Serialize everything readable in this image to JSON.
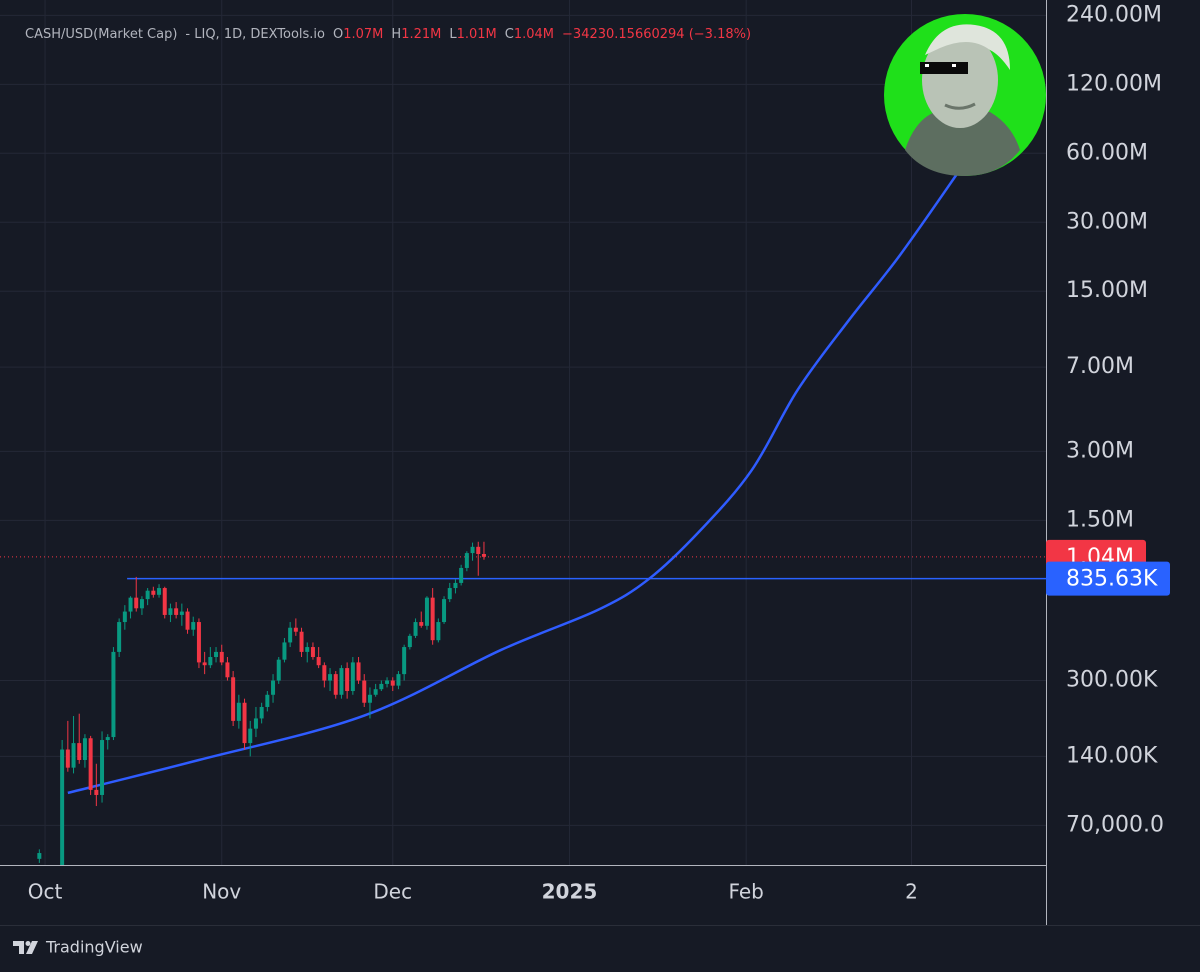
{
  "chart_data": {
    "type": "candlestick",
    "title": "CASH/USD(Market Cap)",
    "subtitle": "- LIQ, 1D, DEXTools.io",
    "ohlc_legend": [
      {
        "label": "O",
        "value": "1.07M"
      },
      {
        "label": "H",
        "value": "1.21M"
      },
      {
        "label": "L",
        "value": "1.01M"
      },
      {
        "label": "C",
        "value": "1.04M"
      }
    ],
    "change": "−34230.15660294 (−3.18%)",
    "up_color": "#089981",
    "down_color": "#f23645",
    "log_scale": true,
    "grid": true,
    "xlim": [
      -7.9,
      175.6
    ],
    "xticks": [
      {
        "value": 0,
        "label": "Oct"
      },
      {
        "value": 31,
        "label": "Nov"
      },
      {
        "value": 61,
        "label": "Dec"
      },
      {
        "value": 92,
        "label": "2025"
      },
      {
        "value": 123,
        "label": "Feb"
      },
      {
        "value": 152,
        "label": "2"
      }
    ],
    "ylim": [
      47000,
      280000000
    ],
    "yticks": [
      {
        "value": 240000000,
        "label": "240.00M"
      },
      {
        "value": 120000000,
        "label": "120.00M"
      },
      {
        "value": 60000000,
        "label": "60.00M"
      },
      {
        "value": 30000000,
        "label": "30.00M"
      },
      {
        "value": 15000000,
        "label": "15.00M"
      },
      {
        "value": 7000000,
        "label": "7.00M"
      },
      {
        "value": 3000000,
        "label": "3.00M"
      },
      {
        "value": 1500000,
        "label": "1.50M"
      },
      {
        "value": 300000,
        "label": "300.00K"
      },
      {
        "value": 140000,
        "label": "140.00K"
      },
      {
        "value": 70000,
        "label": "70,000.0"
      }
    ],
    "x": [
      -1,
      3,
      4,
      5,
      6,
      7,
      8,
      9,
      10,
      11,
      12,
      13,
      14,
      15,
      16,
      17,
      18,
      19,
      20,
      21,
      22,
      23,
      24,
      25,
      26,
      27,
      28,
      29,
      30,
      31,
      32,
      33,
      34,
      35,
      36,
      37,
      38,
      39,
      40,
      41,
      42,
      43,
      44,
      45,
      46,
      47,
      48,
      49,
      50,
      51,
      52,
      53,
      54,
      55,
      56,
      57,
      58,
      59,
      60,
      61,
      62,
      63,
      64,
      65,
      66,
      67,
      68,
      69,
      70,
      71,
      72,
      73,
      74,
      75,
      76,
      77
    ],
    "open": [
      50000,
      47000,
      150000,
      125000,
      160000,
      135000,
      168000,
      100000,
      95000,
      165000,
      170000,
      400000,
      540000,
      600000,
      690000,
      620000,
      680000,
      740000,
      710000,
      760000,
      580000,
      620000,
      580000,
      600000,
      500000,
      540000,
      360000,
      350000,
      380000,
      400000,
      360000,
      310000,
      200000,
      240000,
      160000,
      185000,
      205000,
      230000,
      260000,
      300000,
      370000,
      440000,
      510000,
      490000,
      400000,
      420000,
      380000,
      350000,
      300000,
      320000,
      260000,
      340000,
      270000,
      360000,
      300000,
      240000,
      260000,
      275000,
      290000,
      300000,
      285000,
      320000,
      420000,
      470000,
      540000,
      520000,
      690000,
      450000,
      540000,
      680000,
      760000,
      800000,
      930000,
      1080000,
      1150000,
      1070000
    ],
    "high": [
      55000,
      165000,
      200000,
      210000,
      215000,
      175000,
      172000,
      130000,
      180000,
      175000,
      420000,
      560000,
      640000,
      700000,
      850000,
      700000,
      760000,
      770000,
      790000,
      770000,
      650000,
      660000,
      650000,
      620000,
      570000,
      560000,
      400000,
      420000,
      420000,
      430000,
      380000,
      330000,
      260000,
      250000,
      200000,
      230000,
      240000,
      270000,
      320000,
      380000,
      460000,
      540000,
      560000,
      510000,
      440000,
      440000,
      420000,
      360000,
      340000,
      330000,
      350000,
      360000,
      380000,
      380000,
      320000,
      280000,
      290000,
      300000,
      310000,
      310000,
      330000,
      430000,
      480000,
      560000,
      600000,
      700000,
      760000,
      560000,
      700000,
      800000,
      830000,
      960000,
      1100000,
      1200000,
      1210000,
      1210000
    ],
    "low": [
      48000,
      40000,
      120000,
      118000,
      130000,
      125000,
      95000,
      85000,
      88000,
      150000,
      165000,
      380000,
      500000,
      560000,
      600000,
      580000,
      640000,
      690000,
      690000,
      560000,
      540000,
      560000,
      520000,
      480000,
      470000,
      340000,
      320000,
      340000,
      360000,
      350000,
      300000,
      190000,
      185000,
      150000,
      140000,
      170000,
      195000,
      220000,
      240000,
      290000,
      360000,
      420000,
      470000,
      380000,
      360000,
      370000,
      340000,
      280000,
      270000,
      250000,
      250000,
      250000,
      260000,
      290000,
      230000,
      205000,
      255000,
      270000,
      280000,
      270000,
      275000,
      300000,
      410000,
      460000,
      510000,
      500000,
      430000,
      440000,
      530000,
      660000,
      720000,
      780000,
      900000,
      1000000,
      860000,
      1010000
    ],
    "close": [
      53000,
      150000,
      125000,
      160000,
      135000,
      168000,
      100000,
      95000,
      165000,
      170000,
      400000,
      540000,
      600000,
      690000,
      620000,
      680000,
      740000,
      710000,
      760000,
      580000,
      620000,
      580000,
      600000,
      500000,
      540000,
      360000,
      350000,
      380000,
      400000,
      360000,
      310000,
      200000,
      240000,
      160000,
      185000,
      205000,
      230000,
      260000,
      300000,
      370000,
      440000,
      510000,
      490000,
      400000,
      420000,
      380000,
      350000,
      300000,
      320000,
      260000,
      340000,
      270000,
      360000,
      300000,
      240000,
      260000,
      275000,
      290000,
      300000,
      285000,
      320000,
      420000,
      470000,
      540000,
      520000,
      690000,
      450000,
      540000,
      680000,
      760000,
      800000,
      930000,
      1080000,
      1150000,
      1070000,
      1040000
    ],
    "trend_curve": {
      "color": "#2f5cff",
      "x": [
        4,
        27,
        56,
        80,
        97,
        106,
        115,
        124,
        132,
        141,
        150,
        161
      ],
      "values": [
        97000,
        135000,
        211000,
        408000,
        610000,
        835000,
        1360000,
        2490000,
        5550000,
        11200000,
        21600000,
        53000000
      ]
    },
    "resistance": {
      "value": 835630,
      "label": "835.63K",
      "color": "#2962ff",
      "x_start": 14.4
    },
    "last_price": {
      "value": 1040000,
      "label": "1.04M",
      "color": "#f23645"
    }
  },
  "brand": "TradingView"
}
